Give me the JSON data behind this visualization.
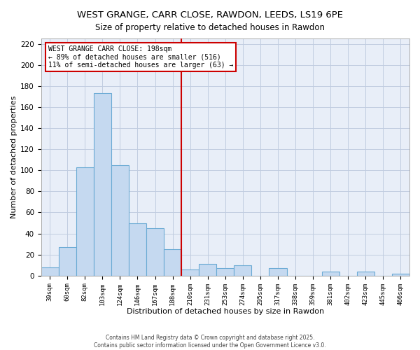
{
  "title": "WEST GRANGE, CARR CLOSE, RAWDON, LEEDS, LS19 6PE",
  "subtitle": "Size of property relative to detached houses in Rawdon",
  "xlabel": "Distribution of detached houses by size in Rawdon",
  "ylabel": "Number of detached properties",
  "bin_labels": [
    "39sqm",
    "60sqm",
    "82sqm",
    "103sqm",
    "124sqm",
    "146sqm",
    "167sqm",
    "188sqm",
    "210sqm",
    "231sqm",
    "253sqm",
    "274sqm",
    "295sqm",
    "317sqm",
    "338sqm",
    "359sqm",
    "381sqm",
    "402sqm",
    "423sqm",
    "445sqm",
    "466sqm"
  ],
  "bar_heights": [
    8,
    27,
    103,
    173,
    105,
    50,
    45,
    25,
    6,
    11,
    7,
    10,
    0,
    7,
    0,
    0,
    4,
    0,
    4,
    0,
    2
  ],
  "bar_color": "#c5d9f0",
  "bar_edge_color": "#6aaad4",
  "vline_x": 7.5,
  "vline_color": "#cc0000",
  "annotation_title": "WEST GRANGE CARR CLOSE: 198sqm",
  "annotation_line1": "← 89% of detached houses are smaller (516)",
  "annotation_line2": "11% of semi-detached houses are larger (63) →",
  "annotation_box_facecolor": "#ffffff",
  "annotation_box_edgecolor": "#cc0000",
  "ylim": [
    0,
    225
  ],
  "yticks": [
    0,
    20,
    40,
    60,
    80,
    100,
    120,
    140,
    160,
    180,
    200,
    220
  ],
  "footer_line1": "Contains HM Land Registry data © Crown copyright and database right 2025.",
  "footer_line2": "Contains public sector information licensed under the Open Government Licence v3.0.",
  "background_color": "#ffffff",
  "plot_bg_color": "#e8eef8",
  "grid_color": "#c0cce0",
  "title_fontsize": 9.5,
  "subtitle_fontsize": 8.5
}
